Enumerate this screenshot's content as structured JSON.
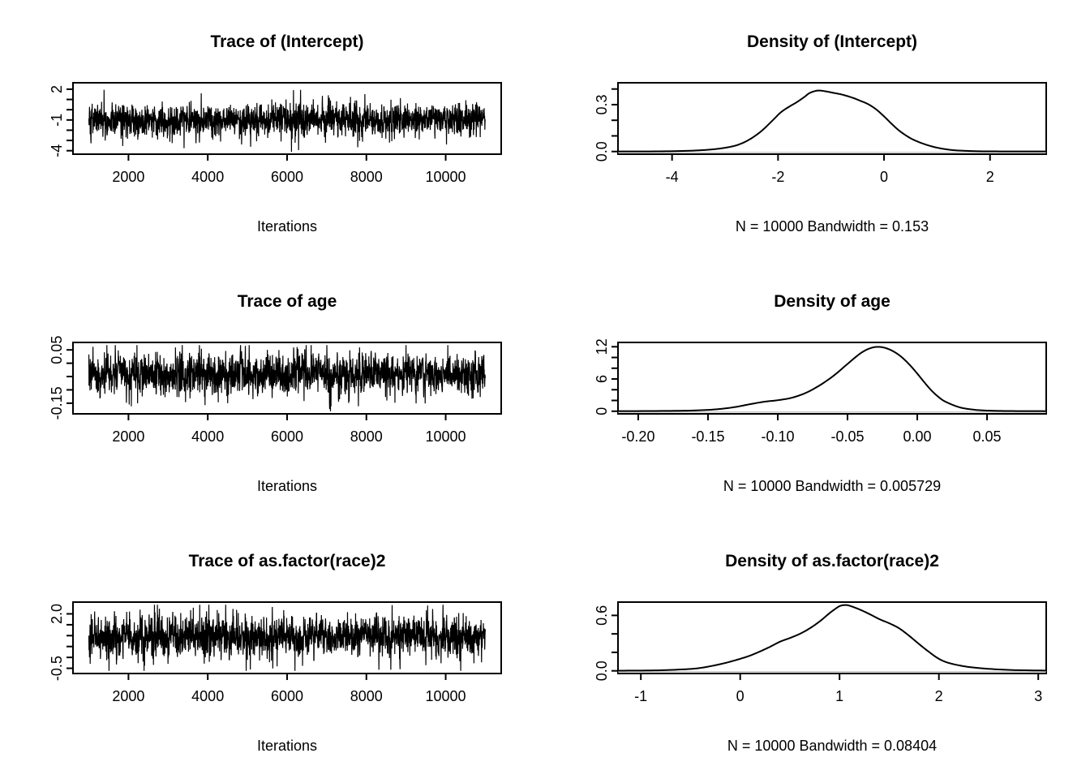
{
  "figure_title": "MCMC trace and density diagnostics",
  "colors": {
    "foreground": "#000000",
    "background": "#ffffff",
    "density_zero_line": "#c8c8c8"
  },
  "chart_data": [
    {
      "id": "trace-intercept",
      "type": "line",
      "subtype": "mcmc-trace",
      "title": "Trace of (Intercept)",
      "xlabel": "Iterations",
      "ylabel": "",
      "grid": false,
      "legend": "none",
      "x_range": [
        601,
        11400
      ],
      "y_range": [
        -4.34,
        2.63
      ],
      "x_ticks": {
        "values": [
          2000,
          4000,
          6000,
          8000,
          10000
        ],
        "labels": [
          "2000",
          "4000",
          "6000",
          "8000",
          "10000"
        ]
      },
      "y_ticks": {
        "values": [
          -4,
          -3,
          -2,
          -1,
          0,
          1,
          2
        ],
        "labels": [
          "-4",
          "",
          "",
          "-1",
          "",
          "",
          "2"
        ]
      },
      "series_summary": {
        "n_samples": 10000,
        "iterations": [
          1001,
          11000
        ],
        "mean": -1.0,
        "sd": 0.72,
        "min": -4.1,
        "max": 2.35
      },
      "render_seed": 101
    },
    {
      "id": "density-intercept",
      "type": "area",
      "subtype": "kernel-density",
      "title": "Density of (Intercept)",
      "xlabel": "N = 10000   Bandwidth = 0.153",
      "ylabel": "",
      "grid": false,
      "legend": "none",
      "n": 10000,
      "bandwidth": 0.153,
      "x_range": [
        -5.02,
        3.06
      ],
      "y_range": [
        -0.017,
        0.44
      ],
      "x_ticks": {
        "values": [
          -4,
          -2,
          0,
          2
        ],
        "labels": [
          "-4",
          "-2",
          "0",
          "2"
        ]
      },
      "y_ticks": {
        "values": [
          0,
          0.1,
          0.2,
          0.3,
          0.4
        ],
        "labels": [
          "0.0",
          "",
          "",
          "0.3",
          ""
        ]
      },
      "curve": {
        "x": [
          -5.02,
          -4.2,
          -3.6,
          -3.2,
          -2.9,
          -2.7,
          -2.5,
          -2.3,
          -2.1,
          -1.95,
          -1.8,
          -1.65,
          -1.5,
          -1.4,
          -1.25,
          -1.1,
          -0.95,
          -0.8,
          -0.6,
          -0.45,
          -0.3,
          -0.15,
          0.0,
          0.15,
          0.3,
          0.5,
          0.7,
          0.9,
          1.1,
          1.3,
          1.5,
          1.75,
          2.0,
          2.4,
          3.06
        ],
        "y": [
          0.0008,
          0.0012,
          0.006,
          0.015,
          0.03,
          0.05,
          0.085,
          0.135,
          0.2,
          0.25,
          0.285,
          0.315,
          0.35,
          0.375,
          0.39,
          0.385,
          0.375,
          0.365,
          0.345,
          0.325,
          0.303,
          0.27,
          0.225,
          0.175,
          0.13,
          0.085,
          0.055,
          0.033,
          0.018,
          0.009,
          0.005,
          0.002,
          0.001,
          0.0008,
          0.0008
        ]
      }
    },
    {
      "id": "trace-age",
      "type": "line",
      "subtype": "mcmc-trace",
      "title": "Trace of age",
      "xlabel": "Iterations",
      "ylabel": "",
      "grid": false,
      "legend": "none",
      "x_range": [
        601,
        11400
      ],
      "y_range": [
        -0.19,
        0.078
      ],
      "x_ticks": {
        "values": [
          2000,
          4000,
          6000,
          8000,
          10000
        ],
        "labels": [
          "2000",
          "4000",
          "6000",
          "8000",
          "10000"
        ]
      },
      "y_ticks": {
        "values": [
          -0.15,
          -0.1,
          -0.05,
          0,
          0.05
        ],
        "labels": [
          "-0.15",
          "",
          "",
          "",
          "0.05"
        ]
      },
      "series_summary": {
        "n_samples": 10000,
        "iterations": [
          1001,
          11000
        ],
        "mean": -0.04,
        "sd": 0.034,
        "min": -0.18,
        "max": 0.068
      },
      "render_seed": 202
    },
    {
      "id": "density-age",
      "type": "area",
      "subtype": "kernel-density",
      "title": "Density of age",
      "xlabel": "N = 10000   Bandwidth = 0.005729",
      "ylabel": "",
      "grid": false,
      "legend": "none",
      "n": 10000,
      "bandwidth": 0.005729,
      "x_range": [
        -0.2145,
        0.0924
      ],
      "y_range": [
        -0.49,
        12.8
      ],
      "x_ticks": {
        "values": [
          -0.2,
          -0.15,
          -0.1,
          -0.05,
          0,
          0.05
        ],
        "labels": [
          "-0.20",
          "-0.15",
          "-0.10",
          "-0.05",
          "0.00",
          "0.05"
        ]
      },
      "y_ticks": {
        "values": [
          0,
          2,
          4,
          6,
          8,
          10,
          12
        ],
        "labels": [
          "0",
          "",
          "",
          "6",
          "",
          "",
          "12"
        ]
      },
      "curve": {
        "x": [
          -0.2145,
          -0.19,
          -0.165,
          -0.15,
          -0.14,
          -0.13,
          -0.12,
          -0.11,
          -0.1,
          -0.09,
          -0.08,
          -0.07,
          -0.06,
          -0.05,
          -0.045,
          -0.04,
          -0.035,
          -0.03,
          -0.025,
          -0.02,
          -0.015,
          -0.01,
          -0.005,
          0.0,
          0.005,
          0.01,
          0.015,
          0.02,
          0.03,
          0.04,
          0.05,
          0.065,
          0.0924
        ],
        "y": [
          0.02,
          0.04,
          0.1,
          0.25,
          0.45,
          0.8,
          1.3,
          1.75,
          2.05,
          2.5,
          3.4,
          4.8,
          6.6,
          8.8,
          9.9,
          10.9,
          11.6,
          11.95,
          11.9,
          11.5,
          10.8,
          9.8,
          8.5,
          7.0,
          5.4,
          3.9,
          2.7,
          1.8,
          0.75,
          0.3,
          0.12,
          0.04,
          0.01
        ]
      }
    },
    {
      "id": "trace-race2",
      "type": "line",
      "subtype": "mcmc-trace",
      "title": "Trace of as.factor(race)2",
      "xlabel": "Iterations",
      "ylabel": "",
      "grid": false,
      "legend": "none",
      "x_range": [
        601,
        11400
      ],
      "y_range": [
        -0.74,
        2.54
      ],
      "x_ticks": {
        "values": [
          2000,
          4000,
          6000,
          8000,
          10000
        ],
        "labels": [
          "2000",
          "4000",
          "6000",
          "8000",
          "10000"
        ]
      },
      "y_ticks": {
        "values": [
          -0.5,
          0,
          0.5,
          1,
          1.5,
          2
        ],
        "labels": [
          "-0.5",
          "",
          "",
          "",
          "",
          "2.0"
        ]
      },
      "series_summary": {
        "n_samples": 10000,
        "iterations": [
          1001,
          11000
        ],
        "mean": 0.95,
        "sd": 0.42,
        "min": -0.62,
        "max": 2.42
      },
      "render_seed": 303
    },
    {
      "id": "density-race2",
      "type": "area",
      "subtype": "kernel-density",
      "title": "Density of as.factor(race)2",
      "xlabel": "N = 10000   Bandwidth = 0.08404",
      "ylabel": "",
      "grid": false,
      "legend": "none",
      "n": 10000,
      "bandwidth": 0.08404,
      "x_range": [
        -1.23,
        3.08
      ],
      "y_range": [
        -0.029,
        0.744
      ],
      "x_ticks": {
        "values": [
          -1,
          0,
          1,
          2,
          3
        ],
        "labels": [
          "-1",
          "0",
          "1",
          "2",
          "3"
        ]
      },
      "y_ticks": {
        "values": [
          0,
          0.2,
          0.4,
          0.6
        ],
        "labels": [
          "0.0",
          "",
          "",
          "0.6"
        ]
      },
      "curve": {
        "x": [
          -1.23,
          -0.9,
          -0.65,
          -0.45,
          -0.3,
          -0.15,
          0.0,
          0.1,
          0.2,
          0.3,
          0.4,
          0.5,
          0.6,
          0.7,
          0.8,
          0.9,
          0.95,
          1.0,
          1.05,
          1.1,
          1.2,
          1.3,
          1.4,
          1.5,
          1.6,
          1.7,
          1.8,
          1.9,
          2.0,
          2.1,
          2.25,
          2.4,
          2.6,
          2.8,
          3.08
        ],
        "y": [
          0.002,
          0.004,
          0.012,
          0.025,
          0.05,
          0.085,
          0.13,
          0.165,
          0.21,
          0.26,
          0.315,
          0.355,
          0.4,
          0.46,
          0.535,
          0.625,
          0.665,
          0.7,
          0.712,
          0.705,
          0.665,
          0.615,
          0.56,
          0.515,
          0.46,
          0.38,
          0.29,
          0.205,
          0.13,
          0.085,
          0.05,
          0.03,
          0.015,
          0.007,
          0.003
        ]
      }
    }
  ]
}
